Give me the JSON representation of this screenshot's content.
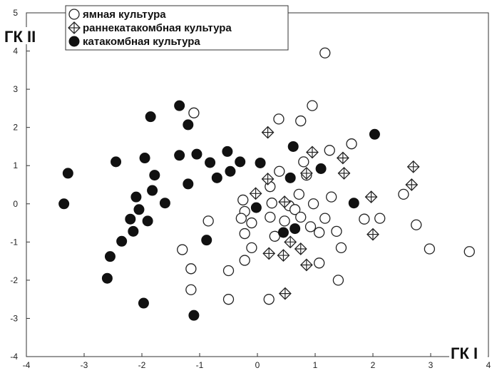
{
  "chart_data": {
    "type": "scatter",
    "xlabel": "ГК I",
    "ylabel": "ГК II",
    "xlim": [
      -4,
      4
    ],
    "ylim": [
      -4,
      5
    ],
    "x_ticks": [
      -4,
      -3,
      -2,
      -1,
      0,
      1,
      2,
      3,
      4
    ],
    "y_ticks": [
      -4,
      -3,
      -2,
      -1,
      0,
      1,
      2,
      3,
      4,
      5
    ],
    "grid": false,
    "legend_position": "top-left",
    "series": [
      {
        "name": "ямная культура",
        "marker": "open-circle",
        "points": [
          [
            1.17,
            3.95
          ],
          [
            0.95,
            2.57
          ],
          [
            0.37,
            2.22
          ],
          [
            0.75,
            2.17
          ],
          [
            1.63,
            1.57
          ],
          [
            -1.1,
            2.38
          ],
          [
            1.25,
            1.4
          ],
          [
            0.8,
            1.1
          ],
          [
            0.38,
            0.85
          ],
          [
            0.85,
            0.75
          ],
          [
            0.22,
            0.45
          ],
          [
            -0.25,
            0.1
          ],
          [
            0.25,
            0.02
          ],
          [
            0.55,
            -0.05
          ],
          [
            0.72,
            0.25
          ],
          [
            0.97,
            0.0
          ],
          [
            1.28,
            0.18
          ],
          [
            -0.22,
            -0.2
          ],
          [
            -0.28,
            -0.38
          ],
          [
            0.22,
            -0.35
          ],
          [
            0.47,
            -0.45
          ],
          [
            0.65,
            -0.15
          ],
          [
            0.75,
            -0.35
          ],
          [
            0.92,
            -0.6
          ],
          [
            1.07,
            -0.75
          ],
          [
            1.17,
            -0.38
          ],
          [
            -0.22,
            -0.78
          ],
          [
            0.3,
            -0.85
          ],
          [
            -1.3,
            -1.2
          ],
          [
            -0.1,
            -1.15
          ],
          [
            -0.5,
            -1.75
          ],
          [
            -0.22,
            -1.48
          ],
          [
            1.07,
            -1.55
          ],
          [
            1.45,
            -1.15
          ],
          [
            1.37,
            -0.72
          ],
          [
            1.85,
            -0.4
          ],
          [
            2.12,
            -0.38
          ],
          [
            2.53,
            0.25
          ],
          [
            2.75,
            -0.55
          ],
          [
            2.98,
            -1.18
          ],
          [
            3.67,
            -1.25
          ],
          [
            -1.15,
            -1.7
          ],
          [
            -1.15,
            -2.25
          ],
          [
            -0.5,
            -2.5
          ],
          [
            0.2,
            -2.5
          ],
          [
            1.4,
            -2.0
          ],
          [
            -0.85,
            -0.45
          ],
          [
            -0.1,
            -0.5
          ]
        ]
      },
      {
        "name": "раннекатакомбная культура",
        "marker": "crossed-diamond",
        "points": [
          [
            0.18,
            1.87
          ],
          [
            0.95,
            1.35
          ],
          [
            1.48,
            1.2
          ],
          [
            0.85,
            0.8
          ],
          [
            1.5,
            0.8
          ],
          [
            0.18,
            0.65
          ],
          [
            -0.03,
            0.27
          ],
          [
            0.47,
            0.05
          ],
          [
            1.97,
            0.18
          ],
          [
            2.67,
            0.5
          ],
          [
            2.7,
            0.97
          ],
          [
            0.2,
            -1.3
          ],
          [
            0.45,
            -1.35
          ],
          [
            0.57,
            -1.0
          ],
          [
            0.75,
            -1.18
          ],
          [
            0.85,
            -1.6
          ],
          [
            2.0,
            -0.8
          ],
          [
            0.48,
            -2.35
          ]
        ]
      },
      {
        "name": "катакомбная культура",
        "marker": "filled-circle",
        "points": [
          [
            -1.35,
            2.57
          ],
          [
            -1.2,
            2.07
          ],
          [
            -1.85,
            2.28
          ],
          [
            -3.28,
            0.8
          ],
          [
            -3.35,
            0.0
          ],
          [
            -2.45,
            1.1
          ],
          [
            -1.95,
            1.2
          ],
          [
            -1.35,
            1.27
          ],
          [
            -1.05,
            1.3
          ],
          [
            -0.82,
            1.08
          ],
          [
            -0.52,
            1.37
          ],
          [
            -0.7,
            0.68
          ],
          [
            -0.47,
            0.85
          ],
          [
            -0.3,
            1.1
          ],
          [
            0.05,
            1.07
          ],
          [
            0.62,
            1.5
          ],
          [
            1.1,
            0.92
          ],
          [
            2.03,
            1.82
          ],
          [
            -1.78,
            0.75
          ],
          [
            -1.2,
            0.52
          ],
          [
            -2.1,
            0.18
          ],
          [
            -1.82,
            0.35
          ],
          [
            -1.6,
            0.02
          ],
          [
            -2.05,
            -0.15
          ],
          [
            -2.2,
            -0.4
          ],
          [
            -1.9,
            -0.45
          ],
          [
            -2.15,
            -0.72
          ],
          [
            -2.35,
            -0.98
          ],
          [
            -2.55,
            -1.38
          ],
          [
            -2.6,
            -1.95
          ],
          [
            -0.88,
            -0.95
          ],
          [
            -0.02,
            -0.1
          ],
          [
            0.57,
            0.68
          ],
          [
            1.67,
            0.02
          ],
          [
            0.65,
            -0.65
          ],
          [
            0.45,
            -0.75
          ],
          [
            -1.97,
            -2.6
          ],
          [
            -1.1,
            -2.92
          ]
        ]
      }
    ]
  }
}
